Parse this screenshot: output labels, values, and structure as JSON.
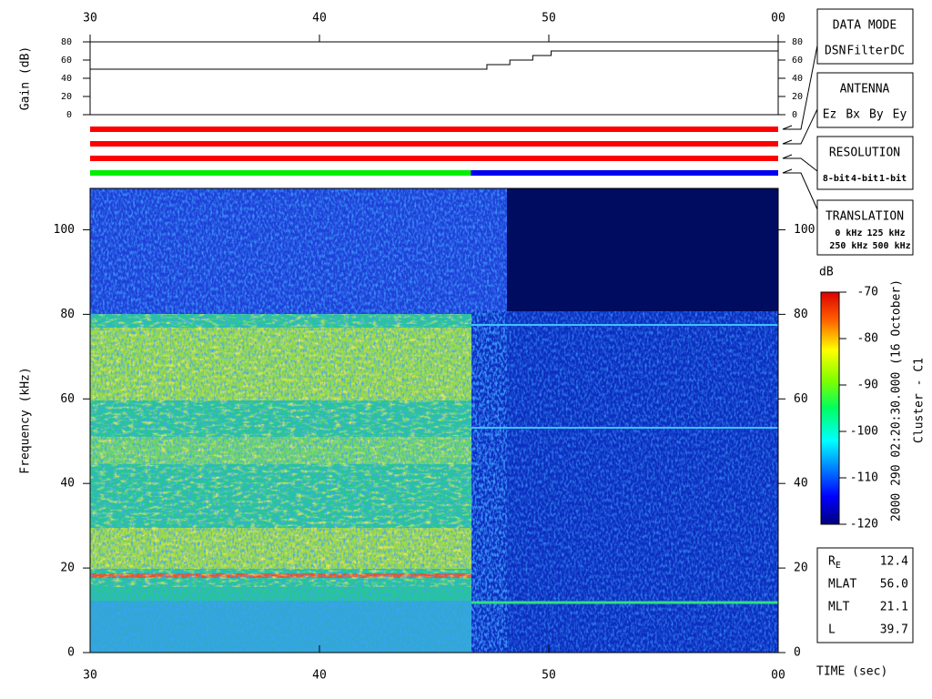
{
  "chart_data": [
    {
      "type": "line",
      "ylabel": "Gain (dB)",
      "x": [
        30,
        47.3,
        47.3,
        48.3,
        48.3,
        49.3,
        49.3,
        50.1,
        50.1,
        60
      ],
      "series": [
        {
          "color": "#000000",
          "values": [
            50,
            50,
            55,
            55,
            60,
            60,
            65,
            65,
            70,
            70
          ]
        }
      ],
      "xlim": [
        30,
        60
      ],
      "xticks": [
        30,
        40,
        50,
        {
          "value": 60,
          "label": "00"
        }
      ],
      "ylim": [
        0,
        80
      ],
      "yticks": [
        0,
        20,
        40,
        60,
        80
      ]
    },
    {
      "type": "status",
      "xlim": [
        30,
        60
      ],
      "panels": [
        {
          "title": "DATA MODE",
          "items": [
            {
              "label": "DSN",
              "color": "#ff0000"
            },
            {
              "label": "Filter",
              "color": "#00dd00"
            },
            {
              "label": "DC",
              "color": "#0000ff"
            }
          ],
          "segments": [
            {
              "start": 30,
              "end": 60,
              "color": "#ff0000"
            }
          ]
        },
        {
          "title": "ANTENNA",
          "items": [
            {
              "label": "Ez",
              "color": "#ff0000"
            },
            {
              "label": "Bx",
              "color": "#00dd00"
            },
            {
              "label": "By",
              "color": "#0000ff"
            },
            {
              "label": "Ey",
              "color": "#000000"
            }
          ],
          "segments": [
            {
              "start": 30,
              "end": 60,
              "color": "#ff0000"
            }
          ]
        },
        {
          "title": "RESOLUTION",
          "items": [
            {
              "label": "8-bit",
              "color": "#ff0000"
            },
            {
              "label": "4-bit",
              "color": "#00dd00"
            },
            {
              "label": "1-bit",
              "color": "#0000ff"
            }
          ],
          "segments": [
            {
              "start": 30,
              "end": 60,
              "color": "#ff0000"
            }
          ]
        },
        {
          "title": "TRANSLATION",
          "items": [
            {
              "label": "0 kHz",
              "color": "#ff0000"
            },
            {
              "label": "125 kHz",
              "color": "#00dd00"
            },
            {
              "label": "250 kHz",
              "color": "#0000ff"
            },
            {
              "label": "500 kHz",
              "color": "#000000"
            }
          ],
          "segments": [
            {
              "start": 30,
              "end": 46.6,
              "color": "#00ee00"
            },
            {
              "start": 46.6,
              "end": 60,
              "color": "#0000ee"
            }
          ]
        }
      ]
    },
    {
      "type": "spectrogram",
      "ylabel": "Frequency (kHz)",
      "xlabel": "TIME (sec)",
      "xlim": [
        30,
        60
      ],
      "xticks": [
        30,
        40,
        50,
        {
          "value": 60,
          "label": "00"
        }
      ],
      "ylim": [
        0,
        110
      ],
      "yticks": [
        0,
        20,
        40,
        60,
        80,
        100
      ],
      "colorbar": {
        "label": "dB",
        "lim": [
          -120,
          -70
        ],
        "ticks": [
          -70,
          -80,
          -90,
          -100,
          -110,
          -120
        ]
      }
    }
  ],
  "annotations": {
    "date": "2000 290 02:20:30.000 (16 October)",
    "spacecraft": "Cluster - C1"
  },
  "ephemeris": [
    {
      "label": "R",
      "sub": "E",
      "value": "12.4"
    },
    {
      "label": "MLAT",
      "value": "56.0"
    },
    {
      "label": "MLT",
      "value": "21.1"
    },
    {
      "label": "L",
      "value": "39.7"
    }
  ]
}
